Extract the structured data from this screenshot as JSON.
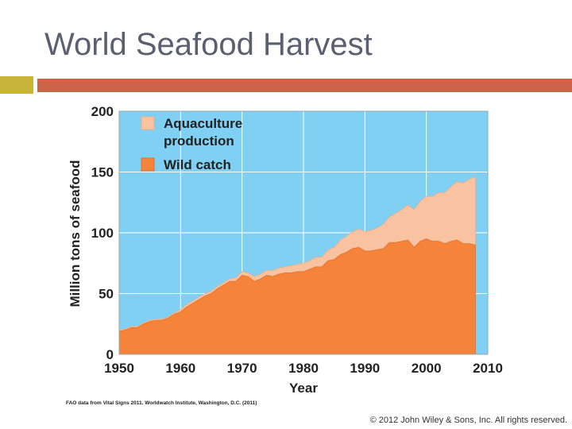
{
  "slide": {
    "title": "World Seafood Harvest",
    "copyright": "© 2012 John Wiley & Sons, Inc. All rights reserved.",
    "source_note": "FAO data from Vital Signs 2011. Worldwatch Institute, Washington, D.C. (2011)"
  },
  "colors": {
    "accent_square": "#c9b43a",
    "accent_bar": "#cd6448",
    "plot_bg": "#7fd0f2",
    "wild_catch": "#f5843a",
    "wild_catch_line": "#e4702a",
    "aquaculture": "#f9c3a1",
    "aquaculture_line": "#f2ab83",
    "grid": "#ffffff",
    "text": "#222222"
  },
  "chart_data": {
    "type": "area",
    "stacked": true,
    "xlabel": "Year",
    "ylabel": "Million tons of seafood",
    "xlim": [
      1950,
      2010
    ],
    "ylim": [
      0,
      200
    ],
    "x_ticks": [
      1950,
      1960,
      1970,
      1980,
      1990,
      2000,
      2010
    ],
    "y_ticks": [
      0,
      50,
      100,
      150,
      200
    ],
    "grid": true,
    "legend_position": "top-left",
    "x": [
      1950,
      1951,
      1952,
      1953,
      1954,
      1955,
      1956,
      1957,
      1958,
      1959,
      1960,
      1961,
      1962,
      1963,
      1964,
      1965,
      1966,
      1967,
      1968,
      1969,
      1970,
      1971,
      1972,
      1973,
      1974,
      1975,
      1976,
      1977,
      1978,
      1979,
      1980,
      1981,
      1982,
      1983,
      1984,
      1985,
      1986,
      1987,
      1988,
      1989,
      1990,
      1991,
      1992,
      1993,
      1994,
      1995,
      1996,
      1997,
      1998,
      1999,
      2000,
      2001,
      2002,
      2003,
      2004,
      2005,
      2006,
      2007,
      2008
    ],
    "series": [
      {
        "name": "Wild catch",
        "values": [
          19,
          20,
          22,
          22,
          25,
          27,
          28,
          28,
          30,
          33,
          35,
          39,
          42,
          45,
          48,
          50,
          54,
          57,
          60,
          60,
          65,
          64,
          60,
          62,
          65,
          64,
          66,
          67,
          67,
          68,
          68,
          70,
          72,
          72,
          77,
          78,
          82,
          84,
          87,
          88,
          85,
          85,
          86,
          87,
          92,
          92,
          93,
          94,
          88,
          93,
          95,
          93,
          93,
          91,
          93,
          94,
          91,
          91,
          90
        ]
      },
      {
        "name": "Aquaculture production",
        "values": [
          1,
          1,
          1,
          1,
          1,
          1,
          1,
          1,
          1,
          1,
          2,
          2,
          2,
          2,
          2,
          2,
          2,
          2,
          2,
          3,
          3,
          3,
          4,
          4,
          4,
          5,
          5,
          5,
          6,
          6,
          7,
          7,
          8,
          8,
          9,
          10,
          12,
          13,
          14,
          15,
          16,
          17,
          18,
          20,
          21,
          24,
          26,
          29,
          31,
          33,
          35,
          37,
          40,
          42,
          45,
          48,
          50,
          53,
          56
        ]
      }
    ],
    "legend": [
      {
        "label_line1": "Aquaculture",
        "label_line2": "production",
        "series": "Aquaculture production"
      },
      {
        "label_line1": "Wild catch",
        "label_line2": "",
        "series": "Wild catch"
      }
    ]
  }
}
